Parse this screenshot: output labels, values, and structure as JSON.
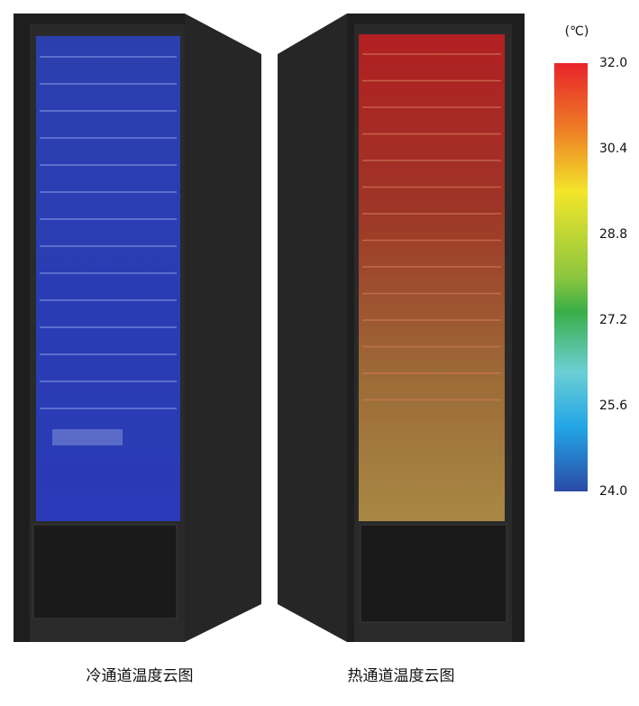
{
  "colorbar": {
    "unit": "(℃)",
    "ticks": [
      {
        "value": 32,
        "label": "32.0"
      },
      {
        "value": 30.4,
        "label": "30.4"
      },
      {
        "value": 28.8,
        "label": "28.8"
      },
      {
        "value": 27.2,
        "label": "27.2"
      },
      {
        "value": 25.6,
        "label": "25.6"
      },
      {
        "value": 24,
        "label": "24.0"
      }
    ]
  },
  "captions": [
    "冷通道温度云图",
    "热通道温度云图"
  ]
}
